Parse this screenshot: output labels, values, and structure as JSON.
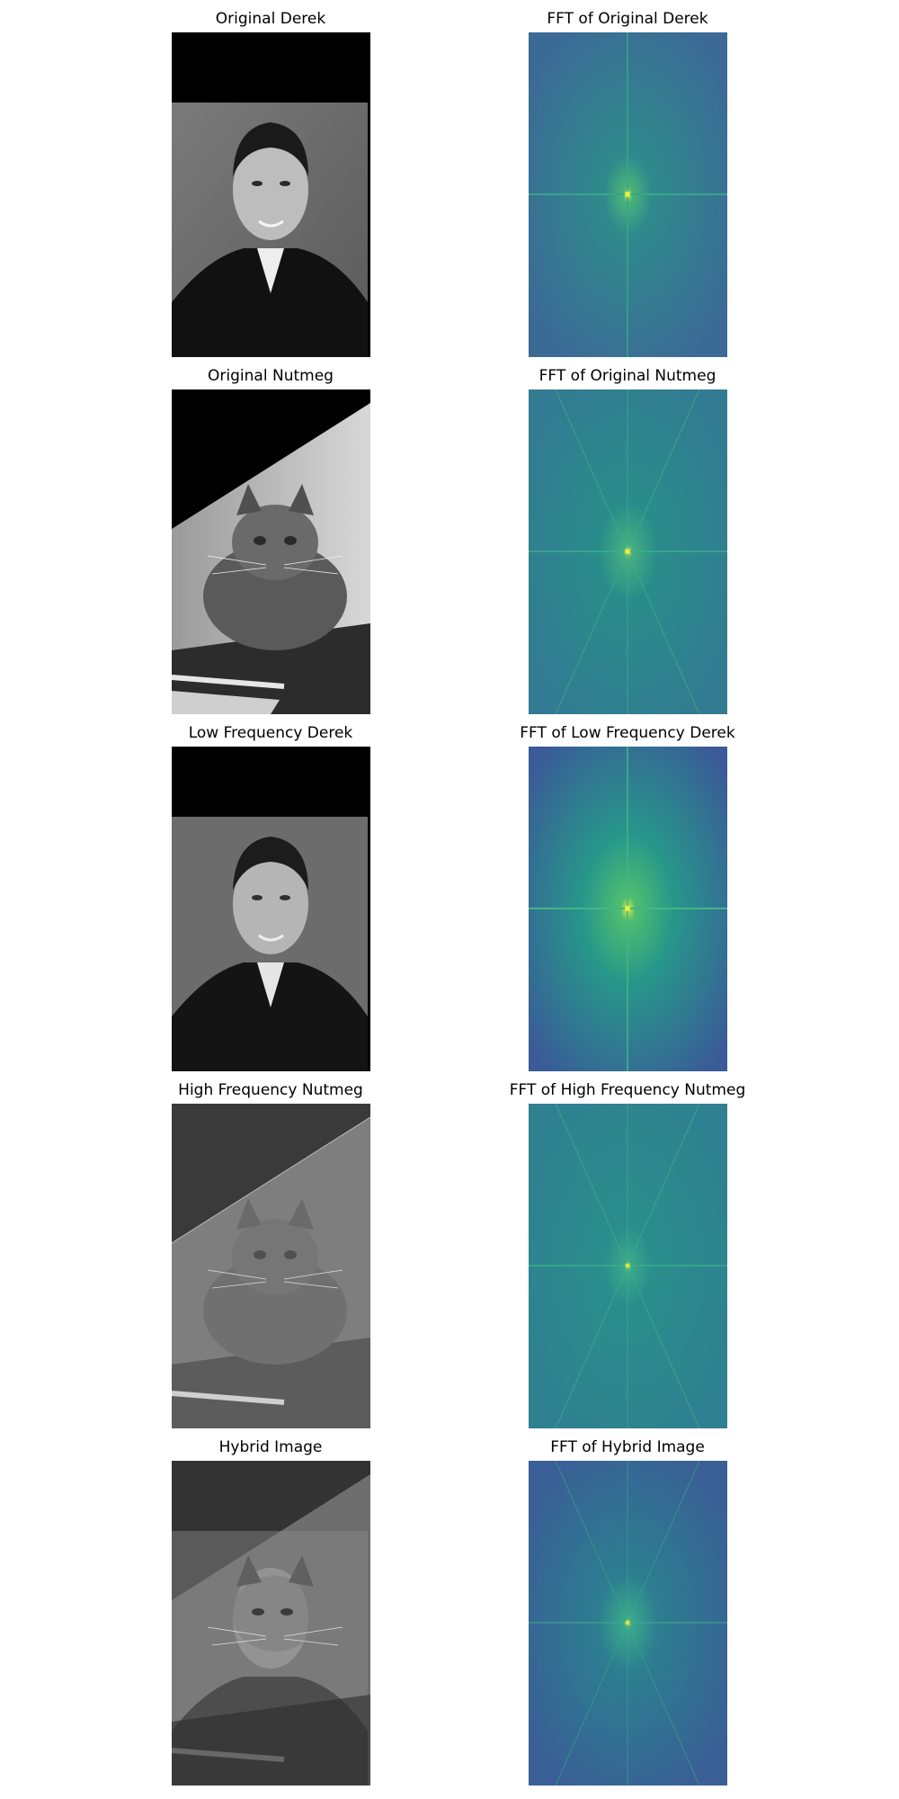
{
  "figure": {
    "panels": [
      {
        "title": "Original Derek",
        "kind": "portrait-grayscale",
        "icon": "portrait-photo-icon"
      },
      {
        "title": "FFT of Original Derek",
        "kind": "fft-spectrum",
        "icon": "fft-spectrum-icon"
      },
      {
        "title": "Original Nutmeg",
        "kind": "cat-grayscale",
        "icon": "cat-photo-icon"
      },
      {
        "title": "FFT of Original Nutmeg",
        "kind": "fft-spectrum",
        "icon": "fft-spectrum-icon"
      },
      {
        "title": "Low Frequency Derek",
        "kind": "portrait-grayscale-blurred",
        "icon": "portrait-photo-icon"
      },
      {
        "title": "FFT of Low Frequency Derek",
        "kind": "fft-spectrum-lowpass",
        "icon": "fft-spectrum-icon"
      },
      {
        "title": "High Frequency Nutmeg",
        "kind": "cat-highpass",
        "icon": "cat-photo-icon"
      },
      {
        "title": "FFT of High Frequency Nutmeg",
        "kind": "fft-spectrum",
        "icon": "fft-spectrum-icon"
      },
      {
        "title": "Hybrid Image",
        "kind": "hybrid",
        "icon": "hybrid-photo-icon"
      },
      {
        "title": "FFT of Hybrid Image",
        "kind": "fft-spectrum",
        "icon": "fft-spectrum-icon"
      }
    ],
    "colors": {
      "background": "#ffffff",
      "fft_base": "#3b6a96",
      "fft_mid": "#2a8c8a",
      "fft_center": "#b8e04a",
      "photo_black": "#000000",
      "photo_gray": "#8a8a8a"
    }
  }
}
